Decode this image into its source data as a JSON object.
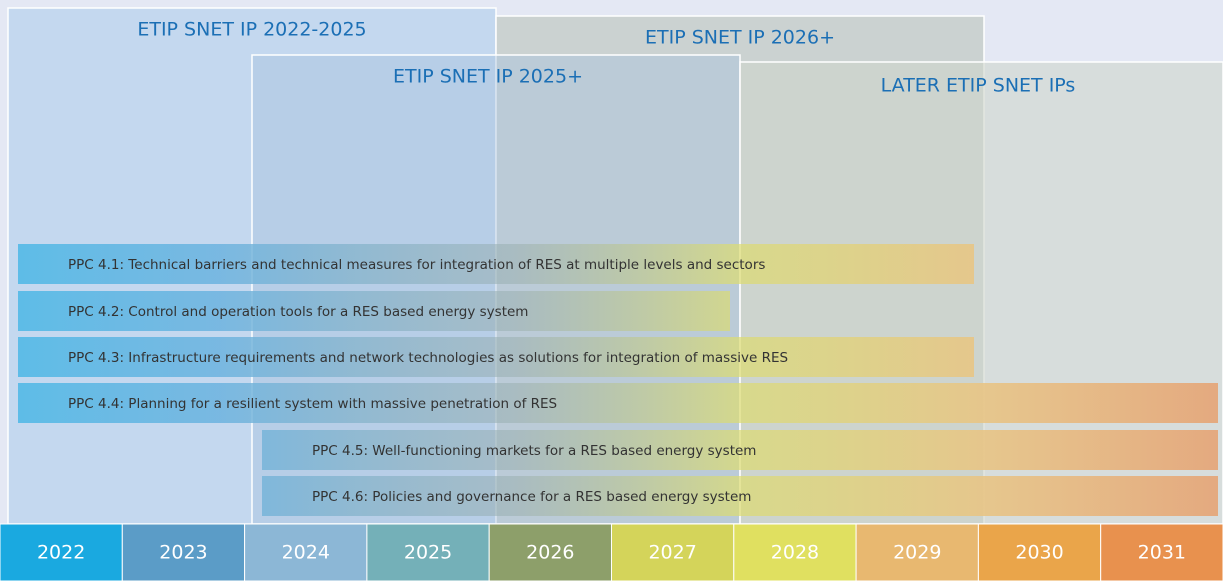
{
  "programmes": [
    "ETIP SNET IP 2022-2025",
    "ETIP SNET IP 2026+",
    "ETIP SNET IP 2025+",
    "LATER ETIP SNET IPs"
  ],
  "ppcs": [
    "PPC 4.1: Technical barriers and technical measures for integration of RES at multiple levels and sectors",
    "PPC 4.2: Control and operation tools for a RES based energy system",
    "PPC 4.3: Infrastructure requirements and network technologies as solutions for integration of massive RES",
    "PPC 4.4: Planning for a resilient system with massive penetration of RES",
    "PPC 4.5: Well-functioning markets for a RES based energy system",
    "PPC 4.6: Policies and governance for a RES based energy system"
  ],
  "years": [
    "2022",
    "2023",
    "2024",
    "2025",
    "2026",
    "2027",
    "2028",
    "2029",
    "2030",
    "2031"
  ]
}
